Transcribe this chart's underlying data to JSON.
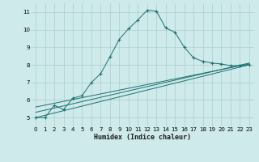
{
  "xlabel": "Humidex (Indice chaleur)",
  "bg_color": "#ceeaea",
  "grid_color": "#aacece",
  "line_color": "#1e7070",
  "xlim": [
    -0.5,
    23.5
  ],
  "ylim": [
    4.5,
    11.5
  ],
  "xticks": [
    0,
    1,
    2,
    3,
    4,
    5,
    6,
    7,
    8,
    9,
    10,
    11,
    12,
    13,
    14,
    15,
    16,
    17,
    18,
    19,
    20,
    21,
    22,
    23
  ],
  "yticks": [
    5,
    6,
    7,
    8,
    9,
    10,
    11
  ],
  "curve1_x": [
    0,
    1,
    2,
    3,
    4,
    5,
    6,
    7,
    8,
    9,
    10,
    11,
    12,
    13,
    14,
    15,
    16,
    17,
    18,
    19,
    20,
    21,
    22,
    23
  ],
  "curve1_y": [
    5.0,
    5.0,
    5.7,
    5.45,
    6.1,
    6.25,
    7.0,
    7.5,
    8.45,
    9.45,
    10.05,
    10.55,
    11.1,
    11.05,
    10.1,
    9.85,
    9.0,
    8.4,
    8.2,
    8.1,
    8.05,
    7.95,
    7.95,
    8.0
  ],
  "curve2_x": [
    0,
    23
  ],
  "curve2_y": [
    5.0,
    8.0
  ],
  "curve3_x": [
    0,
    23
  ],
  "curve3_y": [
    5.3,
    8.1
  ],
  "curve4_x": [
    0,
    23
  ],
  "curve4_y": [
    5.6,
    8.05
  ]
}
